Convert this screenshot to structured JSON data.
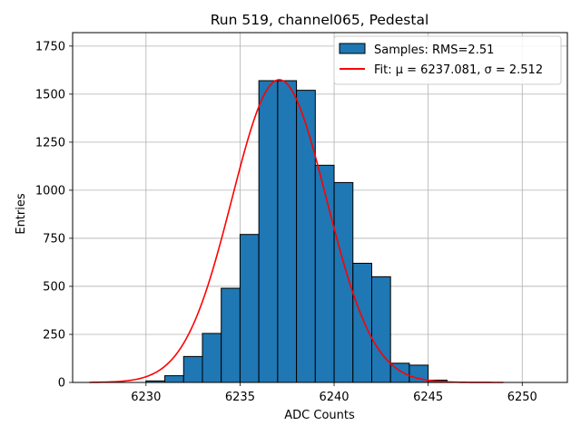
{
  "chart_data": {
    "type": "bar",
    "title": "Run 519, channel065, Pedestal",
    "xlabel": "ADC Counts",
    "ylabel": "Entries",
    "xlim": [
      6226.1,
      6252.4
    ],
    "ylim": [
      0,
      1820
    ],
    "grid": true,
    "x_ticks": [
      6230,
      6235,
      6240,
      6245,
      6250
    ],
    "y_ticks": [
      0,
      250,
      500,
      750,
      1000,
      1250,
      1500,
      1750
    ],
    "bins": [
      {
        "x0": 6230,
        "x1": 6231,
        "value": 8
      },
      {
        "x0": 6231,
        "x1": 6232,
        "value": 35
      },
      {
        "x0": 6232,
        "x1": 6233,
        "value": 135
      },
      {
        "x0": 6233,
        "x1": 6234,
        "value": 255
      },
      {
        "x0": 6234,
        "x1": 6235,
        "value": 490
      },
      {
        "x0": 6235,
        "x1": 6236,
        "value": 770
      },
      {
        "x0": 6236,
        "x1": 6237,
        "value": 1570
      },
      {
        "x0": 6237,
        "x1": 6238,
        "value": 1570
      },
      {
        "x0": 6238,
        "x1": 6239,
        "value": 1520
      },
      {
        "x0": 6239,
        "x1": 6240,
        "value": 1130
      },
      {
        "x0": 6240,
        "x1": 6241,
        "value": 1040
      },
      {
        "x0": 6241,
        "x1": 6242,
        "value": 620
      },
      {
        "x0": 6242,
        "x1": 6243,
        "value": 550
      },
      {
        "x0": 6243,
        "x1": 6244,
        "value": 100
      },
      {
        "x0": 6244,
        "x1": 6245,
        "value": 90
      },
      {
        "x0": 6245,
        "x1": 6246,
        "value": 12
      }
    ],
    "fit": {
      "mu": 6237.081,
      "sigma": 2.512,
      "amplitude": 1575,
      "x_range": [
        6227,
        6249
      ]
    },
    "legend": {
      "position": "top-right",
      "entries": [
        {
          "label": "Samples: RMS=2.51",
          "kind": "patch"
        },
        {
          "label": "Fit: μ = 6237.081, σ = 2.512",
          "kind": "line"
        }
      ]
    },
    "colors": {
      "bar": "#1f77b4",
      "bar_edge": "#000000",
      "fit": "#ff0000",
      "grid": "#b0b0b0"
    }
  }
}
